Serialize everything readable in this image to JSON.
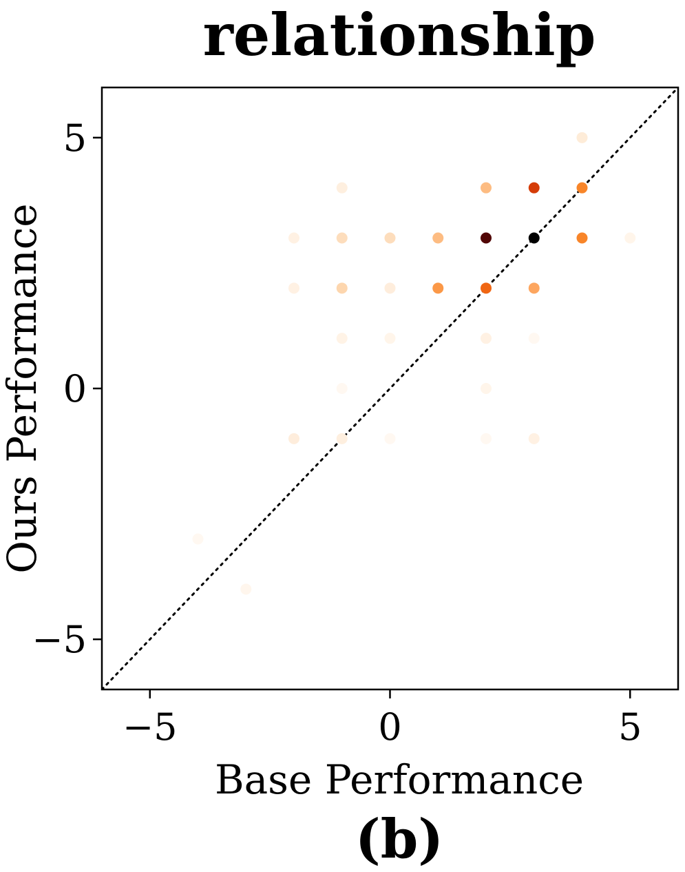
{
  "chart_data": {
    "type": "scatter",
    "title": "relationship",
    "panel_label": "(b)",
    "xlabel": "Base Performance",
    "ylabel": "Ours Performance",
    "xlim": [
      -6,
      6
    ],
    "ylim": [
      -6,
      6
    ],
    "xticks": [
      -5,
      0,
      5
    ],
    "yticks": [
      -5,
      0,
      5
    ],
    "xtick_labels": [
      "−5",
      "0",
      "5"
    ],
    "ytick_labels": [
      "−5",
      "0",
      "5"
    ],
    "grid": false,
    "reference_line": {
      "style": "dotted",
      "from": [
        -6,
        -6
      ],
      "to": [
        6,
        6
      ]
    },
    "colormap": "Oranges",
    "points": [
      {
        "x": 4,
        "y": 5,
        "density": 0.08
      },
      {
        "x": -1,
        "y": 4,
        "density": 0.06
      },
      {
        "x": 2,
        "y": 4,
        "density": 0.3
      },
      {
        "x": 3,
        "y": 4,
        "density": 0.82
      },
      {
        "x": 4,
        "y": 4,
        "density": 0.55
      },
      {
        "x": -2,
        "y": 3,
        "density": 0.05
      },
      {
        "x": -1,
        "y": 3,
        "density": 0.16
      },
      {
        "x": 0,
        "y": 3,
        "density": 0.16
      },
      {
        "x": 1,
        "y": 3,
        "density": 0.3
      },
      {
        "x": 2,
        "y": 3,
        "density": 0.95
      },
      {
        "x": 3,
        "y": 3,
        "density": 1.0
      },
      {
        "x": 4,
        "y": 3,
        "density": 0.55
      },
      {
        "x": 5,
        "y": 3,
        "density": 0.03
      },
      {
        "x": -2,
        "y": 2,
        "density": 0.05
      },
      {
        "x": -1,
        "y": 2,
        "density": 0.2
      },
      {
        "x": 0,
        "y": 2,
        "density": 0.07
      },
      {
        "x": 1,
        "y": 2,
        "density": 0.45
      },
      {
        "x": 2,
        "y": 2,
        "density": 0.68
      },
      {
        "x": 3,
        "y": 2,
        "density": 0.38
      },
      {
        "x": -1,
        "y": 1,
        "density": 0.04
      },
      {
        "x": 0,
        "y": 1,
        "density": 0.03
      },
      {
        "x": 2,
        "y": 1,
        "density": 0.05
      },
      {
        "x": 3,
        "y": 1,
        "density": 0.01
      },
      {
        "x": -1,
        "y": 0,
        "density": 0.01
      },
      {
        "x": 2,
        "y": 0,
        "density": 0.03
      },
      {
        "x": -2,
        "y": -1,
        "density": 0.07
      },
      {
        "x": -1,
        "y": -1,
        "density": 0.06
      },
      {
        "x": 0,
        "y": -1,
        "density": 0.01
      },
      {
        "x": 2,
        "y": -1,
        "density": 0.01
      },
      {
        "x": 3,
        "y": -1,
        "density": 0.05
      },
      {
        "x": -4,
        "y": -3,
        "density": 0.01
      },
      {
        "x": -3,
        "y": -4,
        "density": 0.02
      }
    ]
  }
}
